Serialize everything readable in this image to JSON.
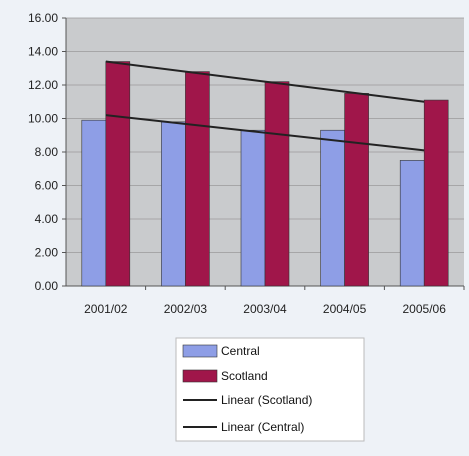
{
  "chart_data": {
    "type": "bar",
    "categories": [
      "2001/02",
      "2002/03",
      "2003/04",
      "2004/05",
      "2005/06"
    ],
    "series": [
      {
        "name": "Central",
        "values": [
          9.9,
          9.8,
          9.3,
          9.3,
          7.5
        ],
        "color": "#8e9ee6"
      },
      {
        "name": "Scotland",
        "values": [
          13.4,
          12.8,
          12.2,
          11.5,
          11.1
        ],
        "color": "#a0164a"
      }
    ],
    "trendlines": [
      {
        "name": "Linear (Scotland)",
        "series": "Scotland",
        "start": 13.4,
        "end": 11.0,
        "color": "#222222"
      },
      {
        "name": "Linear (Central)",
        "series": "Central",
        "start": 10.2,
        "end": 8.1,
        "color": "#222222"
      }
    ],
    "yticks": [
      "0.00",
      "2.00",
      "4.00",
      "6.00",
      "8.00",
      "10.00",
      "12.00",
      "14.00",
      "16.00"
    ],
    "ylim": [
      0,
      16
    ],
    "grid": true,
    "legend_position": "bottom",
    "plot_background": "#c9cbcd"
  }
}
